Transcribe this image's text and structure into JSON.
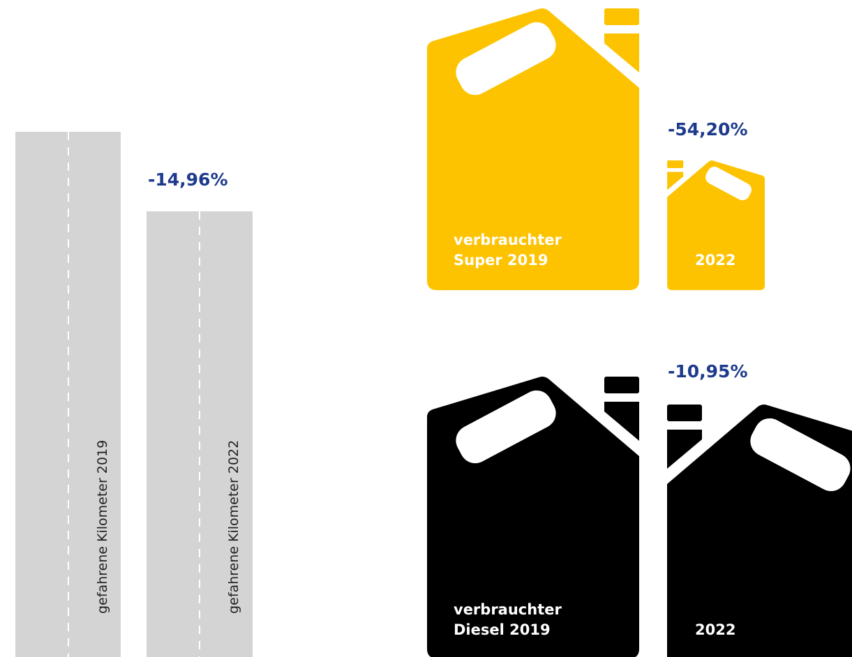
{
  "kilometers": {
    "bars": [
      {
        "label": "gefahrene Kilometer 2019"
      },
      {
        "label": "gefahrene Kilometer 2022"
      }
    ],
    "change": "-14,96%"
  },
  "super": {
    "label_line1": "verbrauchter",
    "label_line2": "Super 2019",
    "label_2022": "2022",
    "change": "-54,20%"
  },
  "diesel": {
    "label_line1": "verbrauchter",
    "label_line2": "Diesel 2019",
    "label_2022": "2022",
    "change": "-10,95%"
  }
}
